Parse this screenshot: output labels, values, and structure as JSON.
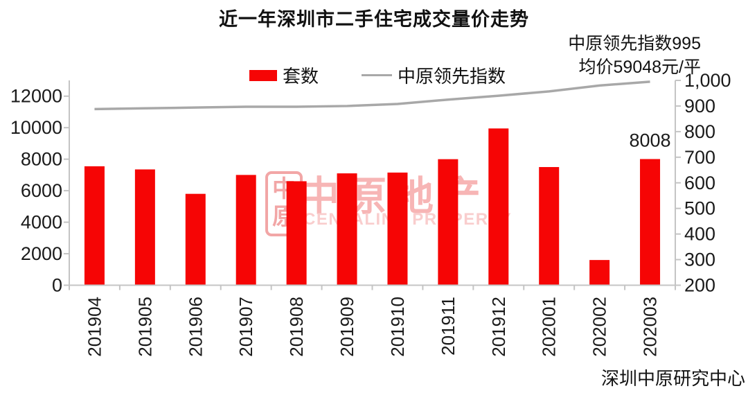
{
  "title": "近一年深圳市二手住宅成交量价走势",
  "annotations": {
    "line1": "中原领先指数995",
    "line2": "均价59048元/平"
  },
  "legend": {
    "bar_label": "套数",
    "line_label": "中原领先指数"
  },
  "source": "深圳中原研究中心",
  "watermark": {
    "seal_top": "中",
    "seal_bottom": "原",
    "text": "中原地产",
    "subtext": "CENTALINE PROPERTY"
  },
  "colors": {
    "bar": "#f60505",
    "line": "#a8a8a8",
    "axis": "#c4c4c4",
    "text": "#1a1a1a"
  },
  "chart_data": {
    "type": "bar",
    "subtype": "combo-bar-line-dual-axis",
    "title": "近一年深圳市二手住宅成交量价走势",
    "categories": [
      "201904",
      "201905",
      "201906",
      "201907",
      "201908",
      "201909",
      "201910",
      "201911",
      "201912",
      "202001",
      "202002",
      "202003"
    ],
    "series": [
      {
        "name": "套数",
        "type": "bar",
        "axis": "left",
        "values": [
          7550,
          7350,
          5800,
          7000,
          6600,
          7100,
          7150,
          8000,
          9950,
          7500,
          1600,
          8008
        ]
      },
      {
        "name": "中原领先指数",
        "type": "line",
        "axis": "right",
        "values": [
          888,
          891,
          894,
          897,
          897,
          900,
          908,
          925,
          940,
          957,
          980,
          995
        ]
      }
    ],
    "left_axis": {
      "min": 0,
      "max": 13000,
      "tick_step": 2000,
      "tick_values": [
        0,
        2000,
        4000,
        6000,
        8000,
        10000,
        12000
      ],
      "tick_labels": [
        "0",
        "2000",
        "4000",
        "6000",
        "8000",
        "10000",
        "12000"
      ]
    },
    "right_axis": {
      "min": 200,
      "max": 1000,
      "tick_step": 100,
      "tick_values": [
        200,
        300,
        400,
        500,
        600,
        700,
        800,
        900,
        1000
      ],
      "tick_labels": [
        "200",
        "300",
        "400",
        "500",
        "600",
        "700",
        "800",
        "900",
        "1,000"
      ]
    },
    "data_label": {
      "series": "套数",
      "category": "202003",
      "text": "8008"
    },
    "grid": false,
    "legend_position": "top"
  }
}
